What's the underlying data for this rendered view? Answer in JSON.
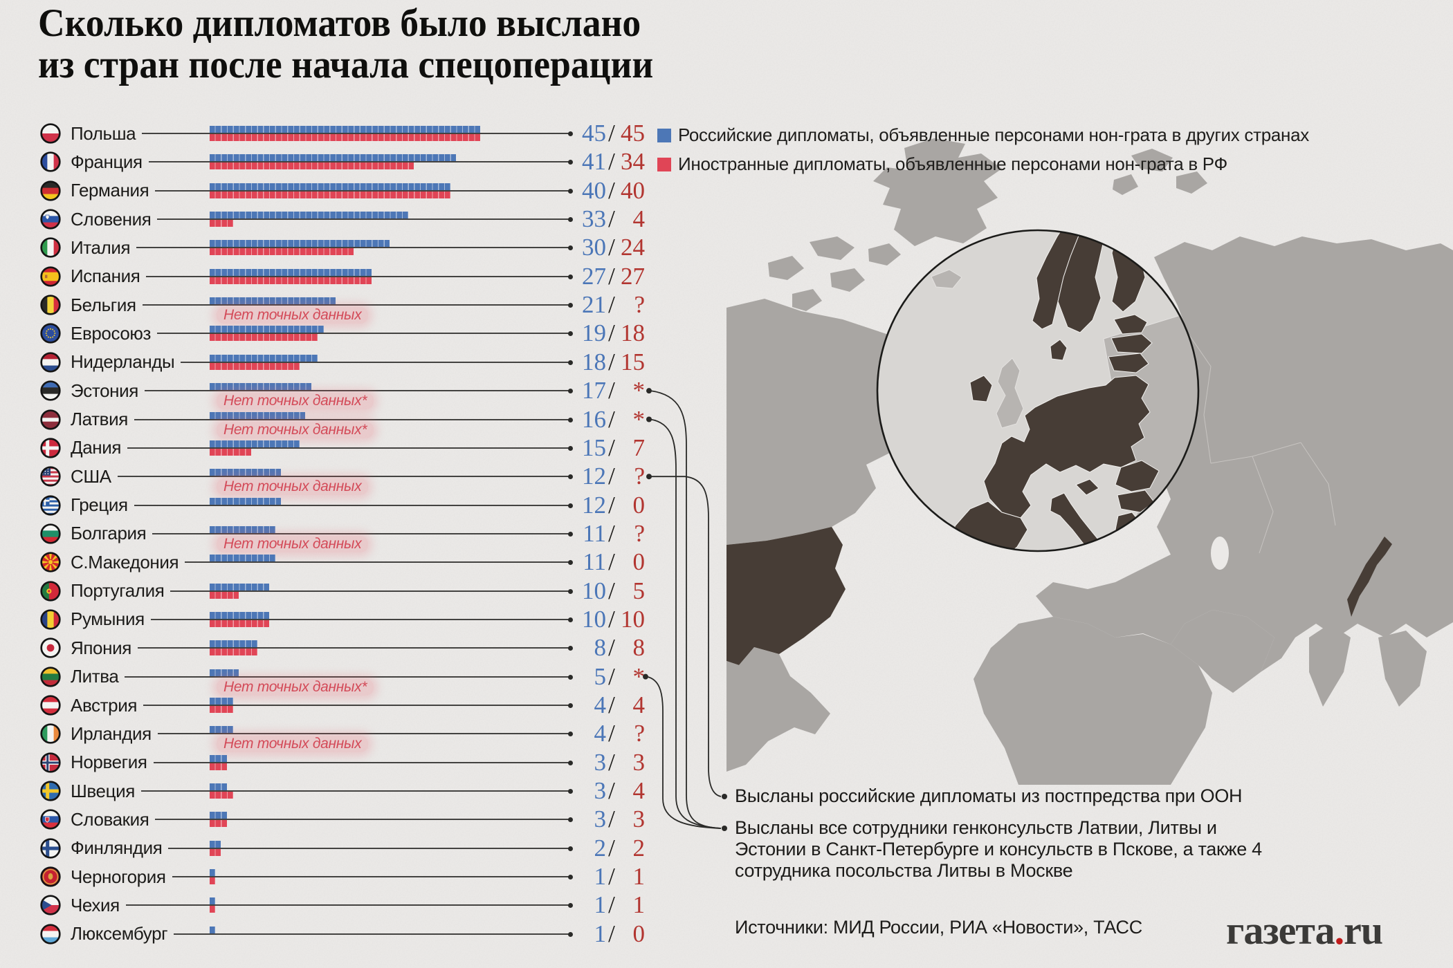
{
  "title": {
    "line1": "Сколько дипломатов было выслано",
    "line2": "из стран после начала спецоперации"
  },
  "legend": [
    {
      "color": "#4d77b6",
      "label": "Российские дипломаты, объявленные персонами нон-грата в других странах"
    },
    {
      "color": "#e04556",
      "label": "Иностранные дипломаты, объявленные персонами нон-грата в РФ"
    }
  ],
  "colors": {
    "bar_blue": "#4d77b6",
    "bar_red": "#e04556",
    "num_blue": "#4b76b7",
    "num_red": "#b23530",
    "no_data_red": "#d34a58",
    "map_highlight": "#473d36",
    "map_land": "#a9a6a3",
    "logo_dot_red": "#c01a1a"
  },
  "rows": [
    {
      "country": "Польша",
      "flag": "pl",
      "blue": 45,
      "red": 45,
      "blue_label": "45",
      "red_label": "45",
      "note": null,
      "connector": null
    },
    {
      "country": "Франция",
      "flag": "fr",
      "blue": 41,
      "red": 34,
      "blue_label": "41",
      "red_label": "34",
      "note": null,
      "connector": null
    },
    {
      "country": "Германия",
      "flag": "de",
      "blue": 40,
      "red": 40,
      "blue_label": "40",
      "red_label": "40",
      "note": null,
      "connector": null
    },
    {
      "country": "Словения",
      "flag": "si",
      "blue": 33,
      "red": 4,
      "blue_label": "33",
      "red_label": "4",
      "note": null,
      "connector": null
    },
    {
      "country": "Италия",
      "flag": "it",
      "blue": 30,
      "red": 24,
      "blue_label": "30",
      "red_label": "24",
      "note": null,
      "connector": null
    },
    {
      "country": "Испания",
      "flag": "es",
      "blue": 27,
      "red": 27,
      "blue_label": "27",
      "red_label": "27",
      "note": null,
      "connector": null
    },
    {
      "country": "Бельгия",
      "flag": "be",
      "blue": 21,
      "red": null,
      "blue_label": "21",
      "red_label": "?",
      "note": "Нет точных данных",
      "connector": null
    },
    {
      "country": "Евросоюз",
      "flag": "eu",
      "blue": 19,
      "red": 18,
      "blue_label": "19",
      "red_label": "18",
      "note": null,
      "connector": null
    },
    {
      "country": "Нидерланды",
      "flag": "nl",
      "blue": 18,
      "red": 15,
      "blue_label": "18",
      "red_label": "15",
      "note": null,
      "connector": null
    },
    {
      "country": "Эстония",
      "flag": "ee",
      "blue": 17,
      "red": null,
      "blue_label": "17",
      "red_label": "*",
      "note": "Нет точных данных*",
      "connector": "consulates"
    },
    {
      "country": "Латвия",
      "flag": "lv",
      "blue": 16,
      "red": null,
      "blue_label": "16",
      "red_label": "*",
      "note": "Нет точных данных*",
      "connector": "consulates"
    },
    {
      "country": "Дания",
      "flag": "dk",
      "blue": 15,
      "red": 7,
      "blue_label": "15",
      "red_label": "7",
      "note": null,
      "connector": null
    },
    {
      "country": "США",
      "flag": "us",
      "blue": 12,
      "red": null,
      "blue_label": "12",
      "red_label": "?",
      "note": "Нет точных данных",
      "connector": "un"
    },
    {
      "country": "Греция",
      "flag": "gr",
      "blue": 12,
      "red": 0,
      "blue_label": "12",
      "red_label": "0",
      "note": null,
      "connector": null
    },
    {
      "country": "Болгария",
      "flag": "bg",
      "blue": 11,
      "red": null,
      "blue_label": "11",
      "red_label": "?",
      "note": "Нет точных данных",
      "connector": null
    },
    {
      "country": "С.Македония",
      "flag": "mk",
      "blue": 11,
      "red": 0,
      "blue_label": "11",
      "red_label": "0",
      "note": null,
      "connector": null
    },
    {
      "country": "Португалия",
      "flag": "pt",
      "blue": 10,
      "red": 5,
      "blue_label": "10",
      "red_label": "5",
      "note": null,
      "connector": null
    },
    {
      "country": "Румыния",
      "flag": "ro",
      "blue": 10,
      "red": 10,
      "blue_label": "10",
      "red_label": "10",
      "note": null,
      "connector": null
    },
    {
      "country": "Япония",
      "flag": "jp",
      "blue": 8,
      "red": 8,
      "blue_label": "8",
      "red_label": "8",
      "note": null,
      "connector": null
    },
    {
      "country": "Литва",
      "flag": "lt",
      "blue": 5,
      "red": null,
      "blue_label": "5",
      "red_label": "*",
      "note": "Нет точных данных*",
      "connector": "consulates"
    },
    {
      "country": "Австрия",
      "flag": "at",
      "blue": 4,
      "red": 4,
      "blue_label": "4",
      "red_label": "4",
      "note": null,
      "connector": null
    },
    {
      "country": "Ирландия",
      "flag": "ie",
      "blue": 4,
      "red": null,
      "blue_label": "4",
      "red_label": "?",
      "note": "Нет точных данных",
      "connector": null
    },
    {
      "country": "Норвегия",
      "flag": "no",
      "blue": 3,
      "red": 3,
      "blue_label": "3",
      "red_label": "3",
      "note": null,
      "connector": null
    },
    {
      "country": "Швеция",
      "flag": "se",
      "blue": 3,
      "red": 4,
      "blue_label": "3",
      "red_label": "4",
      "note": null,
      "connector": null
    },
    {
      "country": "Словакия",
      "flag": "sk",
      "blue": 3,
      "red": 3,
      "blue_label": "3",
      "red_label": "3",
      "note": null,
      "connector": null
    },
    {
      "country": "Финляндия",
      "flag": "fi",
      "blue": 2,
      "red": 2,
      "blue_label": "2",
      "red_label": "2",
      "note": null,
      "connector": null
    },
    {
      "country": "Черногория",
      "flag": "me",
      "blue": 1,
      "red": 1,
      "blue_label": "1",
      "red_label": "1",
      "note": null,
      "connector": null
    },
    {
      "country": "Чехия",
      "flag": "cz",
      "blue": 1,
      "red": 1,
      "blue_label": "1",
      "red_label": "1",
      "note": null,
      "connector": null
    },
    {
      "country": "Люксембург",
      "flag": "lu",
      "blue": 1,
      "red": 0,
      "blue_label": "1",
      "red_label": "0",
      "note": null,
      "connector": null
    }
  ],
  "annotations": {
    "un": "Высланы российские дипломаты из постпредства при ООН",
    "consulates": "Высланы все сотрудники генконсульств Латвии, Литвы и Эстонии в Санкт-Петербурге и консульств в Пскове, а также 4 сотрудника посольства Литвы в Москве"
  },
  "sources": "Источники: МИД России, РИА «Новости», ТАСС",
  "logo": {
    "name": "газета",
    "dot": ".",
    "tld": "ru"
  },
  "chart_data": {
    "type": "bar",
    "orientation": "horizontal",
    "title": "Сколько дипломатов было выслано из стран после начала спецоперации",
    "unit": "дипломаты (1 сегмент = 1 человек)",
    "legend_position": "top-right",
    "categories": [
      "Польша",
      "Франция",
      "Германия",
      "Словения",
      "Италия",
      "Испания",
      "Бельгия",
      "Евросоюз",
      "Нидерланды",
      "Эстония",
      "Латвия",
      "Дания",
      "США",
      "Греция",
      "Болгария",
      "С.Македония",
      "Португалия",
      "Румыния",
      "Япония",
      "Литва",
      "Австрия",
      "Ирландия",
      "Норвегия",
      "Швеция",
      "Словакия",
      "Финляндия",
      "Черногория",
      "Чехия",
      "Люксембург"
    ],
    "series": [
      {
        "name": "Российские дипломаты, объявленные персонами нон-грата в других странах",
        "color": "#4d77b6",
        "values": [
          45,
          41,
          40,
          33,
          30,
          27,
          21,
          19,
          18,
          17,
          16,
          15,
          12,
          12,
          11,
          11,
          10,
          10,
          8,
          5,
          4,
          4,
          3,
          3,
          3,
          2,
          1,
          1,
          1
        ]
      },
      {
        "name": "Иностранные дипломаты, объявленные персонами нон-грата в РФ",
        "color": "#e04556",
        "values": [
          45,
          34,
          40,
          4,
          24,
          27,
          null,
          18,
          15,
          null,
          null,
          7,
          null,
          0,
          null,
          0,
          5,
          10,
          8,
          null,
          4,
          null,
          3,
          4,
          3,
          2,
          1,
          1,
          0
        ]
      }
    ],
    "value_labels": [
      "45/45",
      "41/34",
      "40/40",
      "33/ 4",
      "30/24",
      "27/27",
      "21/ ?",
      "19/18",
      "18/15",
      "17/ *",
      "16/ *",
      "15/ 7",
      "12/ ?",
      "12/ 0",
      "11/ ?",
      "11/ 0",
      "10/ 5",
      "10/10",
      "8/ 8",
      "5/ *",
      "4/ 4",
      "4/ ?",
      "3/ 3",
      "3/ 4",
      "3/ 3",
      "2/ 2",
      "1/ 1",
      "1/ 1",
      "1/ 0"
    ],
    "missing_data_note": "Нет точных данных",
    "footnote_star": "Высланы все сотрудники генконсульств Латвии, Литвы и Эстонии в Санкт-Петербурге и консульств в Пскове, а также 4 сотрудника посольства Литвы в Москве",
    "footnote_question_usa": "Высланы российские дипломаты из постпредства при ООН"
  }
}
